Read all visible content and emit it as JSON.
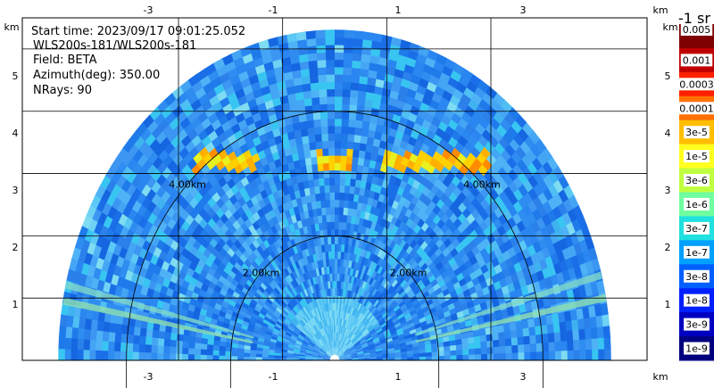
{
  "chart_data": {
    "type": "heatmap",
    "projection": "ppi",
    "info": {
      "start_time": "Start time: 2023/09/17 09:01:25.052",
      "instrument": "WLS200s-181/WLS200s-181",
      "field": "Field: BETA",
      "azimuth": "Azimuth(deg): 350.00",
      "nrays": "NRays: 90"
    },
    "x_unit": "km",
    "y_unit": "km",
    "x_ticks": [
      "-3",
      "-1",
      "1",
      "3"
    ],
    "y_ticks": [
      "1",
      "2",
      "3",
      "4",
      "5"
    ],
    "xlim": [
      -6,
      6
    ],
    "ylim": [
      0,
      5.5
    ],
    "max_range_km": 5.3,
    "range_rings": [
      {
        "value": 2,
        "label": "2.00km"
      },
      {
        "value": 4,
        "label": "4.00km"
      }
    ],
    "grid": true,
    "colorbar": {
      "title": "-1 sr",
      "labels": [
        "0.005",
        "0.001",
        "0.0003",
        "0.0001",
        "3e-5",
        "1e-5",
        "3e-6",
        "1e-6",
        "3e-7",
        "1e-7",
        "3e-8",
        "1e-8",
        "3e-9",
        "1e-9"
      ],
      "colors": [
        "#7f0000",
        "#bf0000",
        "#ff2000",
        "#ff7000",
        "#ffbf00",
        "#ffff20",
        "#c0ff40",
        "#70ffa0",
        "#20e0e0",
        "#00a0ff",
        "#0060ff",
        "#0020ff",
        "#0000c0",
        "#00007f"
      ]
    },
    "features": [
      {
        "description": "cloud layer",
        "height_km": 3.2,
        "x_range_km": [
          -2.7,
          3.0
        ],
        "level": "3e-5 to 3e-6"
      }
    ]
  }
}
